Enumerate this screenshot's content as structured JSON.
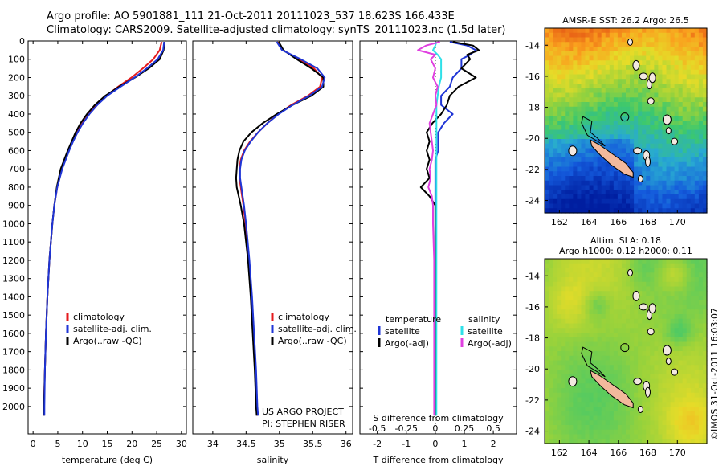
{
  "header": {
    "line1": "Argo profile: AO 5901881_111 21-Oct-2011 20111023_537 18.623S 166.433E",
    "line2": "Climatology: CARS2009. Satellite-adjusted climatology: synTS_20111023.nc (1.5d later)"
  },
  "colors": {
    "climatology": "#e41a1c",
    "satellite": "#1f35d6",
    "argo": "#000000",
    "sal_satellite": "#2fe0e8",
    "sal_argo": "#e040e0"
  },
  "chart_data": [
    {
      "id": "temperature",
      "type": "line",
      "xlabel": "temperature (deg C)",
      "ylabel": "",
      "xlim": [
        -1,
        31
      ],
      "ylim": [
        2150,
        0
      ],
      "xticks": [
        0,
        5,
        10,
        15,
        20,
        25,
        30
      ],
      "yticks": [
        0,
        100,
        200,
        300,
        400,
        500,
        600,
        700,
        800,
        900,
        1000,
        1100,
        1200,
        1300,
        1400,
        1500,
        1600,
        1700,
        1800,
        1900,
        2000
      ],
      "depth": [
        5,
        50,
        100,
        150,
        200,
        250,
        300,
        350,
        400,
        450,
        500,
        550,
        600,
        700,
        800,
        900,
        1000,
        1200,
        1400,
        1600,
        1800,
        2000,
        2050
      ],
      "series": [
        {
          "name": "climatology",
          "values": [
            26.0,
            25.6,
            24.3,
            22.2,
            19.9,
            17.2,
            14.8,
            12.8,
            11.3,
            10.0,
            8.9,
            8.0,
            7.2,
            5.8,
            4.9,
            4.3,
            3.9,
            3.3,
            2.9,
            2.6,
            2.4,
            2.2,
            2.2
          ]
        },
        {
          "name": "satellite-adj. clim.",
          "values": [
            26.5,
            26.3,
            25.2,
            23.0,
            20.5,
            17.7,
            15.0,
            13.0,
            11.4,
            10.1,
            9.0,
            8.1,
            7.3,
            5.9,
            4.9,
            4.3,
            3.9,
            3.3,
            2.9,
            2.6,
            2.4,
            2.3,
            2.3
          ]
        },
        {
          "name": "Argo(..raw -QC)",
          "values": [
            26.6,
            26.4,
            25.6,
            23.4,
            20.6,
            17.4,
            14.6,
            12.5,
            10.9,
            9.6,
            8.6,
            7.8,
            7.0,
            5.6,
            4.8,
            4.3,
            3.9,
            3.3,
            2.9,
            2.6,
            2.4,
            2.2,
            2.2
          ]
        }
      ],
      "legend": [
        "climatology",
        "satellite-adj. clim.",
        "Argo(..raw -QC)"
      ]
    },
    {
      "id": "salinity",
      "type": "line",
      "xlabel": "salinity",
      "xlim": [
        33.7,
        36.1
      ],
      "ylim": [
        2150,
        0
      ],
      "xticks": [
        34,
        34.5,
        35,
        35.5,
        36
      ],
      "xticklabels": [
        "34",
        "34.5",
        "35",
        "35.5",
        "36"
      ],
      "depth": [
        5,
        50,
        100,
        150,
        200,
        250,
        300,
        350,
        400,
        450,
        500,
        550,
        600,
        650,
        700,
        750,
        800,
        900,
        1000,
        1200,
        1400,
        1600,
        1800,
        2000,
        2050
      ],
      "series": [
        {
          "name": "climatology",
          "values": [
            34.98,
            35.05,
            35.3,
            35.52,
            35.64,
            35.61,
            35.43,
            35.18,
            34.98,
            34.82,
            34.68,
            34.56,
            34.47,
            34.42,
            34.4,
            34.4,
            34.42,
            34.46,
            34.49,
            34.54,
            34.58,
            34.61,
            34.64,
            34.66,
            34.67
          ]
        },
        {
          "name": "satellite-adj. clim.",
          "values": [
            34.96,
            35.04,
            35.32,
            35.57,
            35.68,
            35.64,
            35.45,
            35.2,
            34.99,
            34.82,
            34.68,
            34.57,
            34.48,
            34.43,
            34.41,
            34.41,
            34.43,
            34.47,
            34.5,
            34.55,
            34.59,
            34.62,
            34.65,
            34.67,
            34.68
          ]
        },
        {
          "name": "Argo(..raw -QC)",
          "values": [
            34.99,
            35.06,
            35.26,
            35.48,
            35.66,
            35.66,
            35.48,
            35.2,
            34.96,
            34.75,
            34.58,
            34.46,
            34.4,
            34.37,
            34.36,
            34.35,
            34.36,
            34.42,
            34.47,
            34.53,
            34.57,
            34.6,
            34.63,
            34.65,
            34.66
          ]
        }
      ],
      "legend": [
        "climatology",
        "satellite-adj. clim.",
        "Argo(..raw -QC)"
      ],
      "credit1": "US ARGO PROJECT",
      "credit2": "PI: STEPHEN RISER"
    },
    {
      "id": "difference",
      "type": "line",
      "xlabel": "T difference from climatology",
      "xlabel_top": "S difference from climatology",
      "xlim": [
        -2.6,
        2.8
      ],
      "ylim": [
        2150,
        0
      ],
      "xticks": [
        -2,
        -1,
        0,
        1,
        2
      ],
      "sticks": [
        -0.5,
        -0.25,
        0,
        0.25,
        0.5
      ],
      "sticklabels": [
        "-0.5",
        "-0.25",
        "0",
        "0.25",
        "0.5"
      ],
      "depth": [
        5,
        25,
        50,
        75,
        100,
        150,
        200,
        250,
        300,
        350,
        400,
        450,
        500,
        550,
        600,
        650,
        700,
        750,
        800,
        850,
        900,
        1000,
        1200,
        1500,
        1800,
        2050
      ],
      "t_series": [
        {
          "name": "satellite",
          "values": [
            0.5,
            1.1,
            1.4,
            1.2,
            0.9,
            0.9,
            0.6,
            0.5,
            0.2,
            0.2,
            0.6,
            0.3,
            0.1,
            0.1,
            0.1,
            0.0,
            0.0,
            0.0,
            0.0,
            0.0,
            0.0,
            0.0,
            0.0,
            0.0,
            0.0,
            0.0
          ]
        },
        {
          "name": "Argo(-adj)",
          "values": [
            0.6,
            1.3,
            1.5,
            1.1,
            1.2,
            0.9,
            1.4,
            0.8,
            0.5,
            0.4,
            0.2,
            -0.1,
            -0.3,
            -0.2,
            -0.3,
            -0.2,
            -0.3,
            -0.2,
            -0.5,
            -0.2,
            0.0,
            0.0,
            0.0,
            0.0,
            0.0,
            0.0
          ]
        }
      ],
      "s_series": [
        {
          "name": "satellite",
          "values": [
            0.01,
            0.0,
            -0.02,
            0.02,
            0.05,
            0.05,
            0.05,
            0.03,
            0.02,
            0.01,
            0.01,
            0.01,
            0.01,
            0.01,
            0.01,
            0.01,
            0.01,
            0.01,
            0.01,
            0.01,
            0.01,
            0.01,
            0.01,
            0.01,
            0.01,
            0.01
          ]
        },
        {
          "name": "Argo(-adj)",
          "values": [
            0.04,
            -0.08,
            -0.15,
            0.0,
            -0.04,
            0.0,
            -0.02,
            0.02,
            0.0,
            0.01,
            -0.02,
            -0.05,
            -0.04,
            -0.03,
            -0.02,
            -0.03,
            -0.05,
            -0.04,
            -0.06,
            -0.03,
            -0.02,
            -0.02,
            -0.01,
            -0.01,
            -0.01,
            -0.01
          ]
        }
      ],
      "legend_t_title": "temperature",
      "legend_s_title": "salinity",
      "legend_t": [
        "satellite",
        "Argo(-adj)"
      ],
      "legend_s": [
        "satellite",
        "Argo(-adj)"
      ]
    },
    {
      "id": "sst_map",
      "type": "heatmap",
      "title": "AMSR-E SST: 26.2 Argo: 26.5",
      "xticks": [
        162,
        164,
        166,
        168,
        170
      ],
      "yticks": [
        -14,
        -16,
        -18,
        -20,
        -22,
        -24
      ],
      "xlim": [
        161,
        172
      ],
      "ylim": [
        -24.8,
        -12.9
      ]
    },
    {
      "id": "sla_map",
      "type": "heatmap",
      "title1": "Altim. SLA: 0.18",
      "title2": "Argo h1000: 0.12 h2000: 0.11",
      "xticks": [
        162,
        164,
        166,
        168,
        170
      ],
      "yticks": [
        -14,
        -16,
        -18,
        -20,
        -22,
        -24
      ],
      "xlim": [
        161,
        172
      ],
      "ylim": [
        -24.8,
        -12.9
      ]
    }
  ],
  "watermark": "©IMOS 31-Oct-2011 16:03:07"
}
